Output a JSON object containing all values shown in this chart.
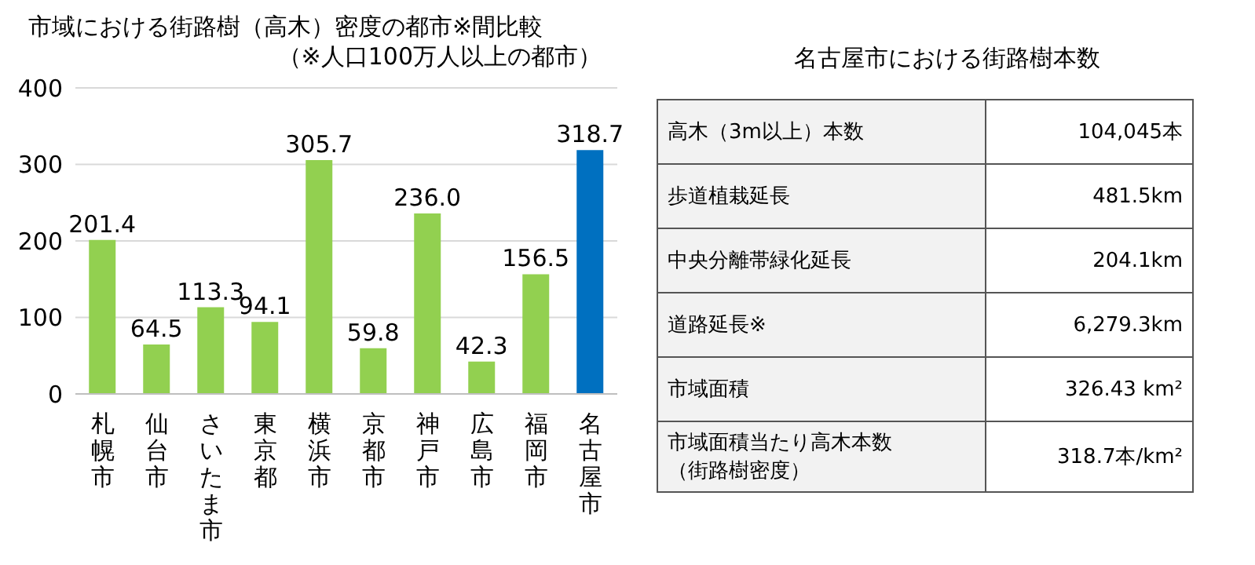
{
  "chart_data": [
    {
      "type": "bar",
      "title": "市域における街路樹（高木）密度の都市※間比較",
      "subtitle": "（※人口100万人以上の都市）",
      "categories": [
        "札幌市",
        "仙台市",
        "さいたま市",
        "東京都",
        "横浜市",
        "京都市",
        "神戸市",
        "広島市",
        "福岡市",
        "名古屋市"
      ],
      "values": [
        201.4,
        64.5,
        113.3,
        94.1,
        305.7,
        59.8,
        236.0,
        42.3,
        156.5,
        318.7
      ],
      "value_labels": [
        "201.4",
        "64.5",
        "113.3",
        "94.1",
        "305.7",
        "59.8",
        "236.0",
        "42.3",
        "156.5",
        "318.7"
      ],
      "colors": [
        "#92d050",
        "#92d050",
        "#92d050",
        "#92d050",
        "#92d050",
        "#92d050",
        "#92d050",
        "#92d050",
        "#92d050",
        "#0070c0"
      ],
      "ylim": [
        0,
        400
      ],
      "yticks": [
        0,
        100,
        200,
        300,
        400
      ],
      "grid": "y"
    },
    {
      "type": "other",
      "title": "名古屋市における街路樹本数",
      "annotations": [
        "高木（3m以上）本数",
        "104,045本",
        "歩道植栽延長",
        "481.5km",
        "中央分離帯緑化延長",
        "204.1km",
        "道路延長※",
        "6,279.3km",
        "市域面積",
        "326.43 km²",
        "市域面積当たり高木本数（街路樹密度）",
        "318.7本/km²"
      ]
    }
  ]
}
